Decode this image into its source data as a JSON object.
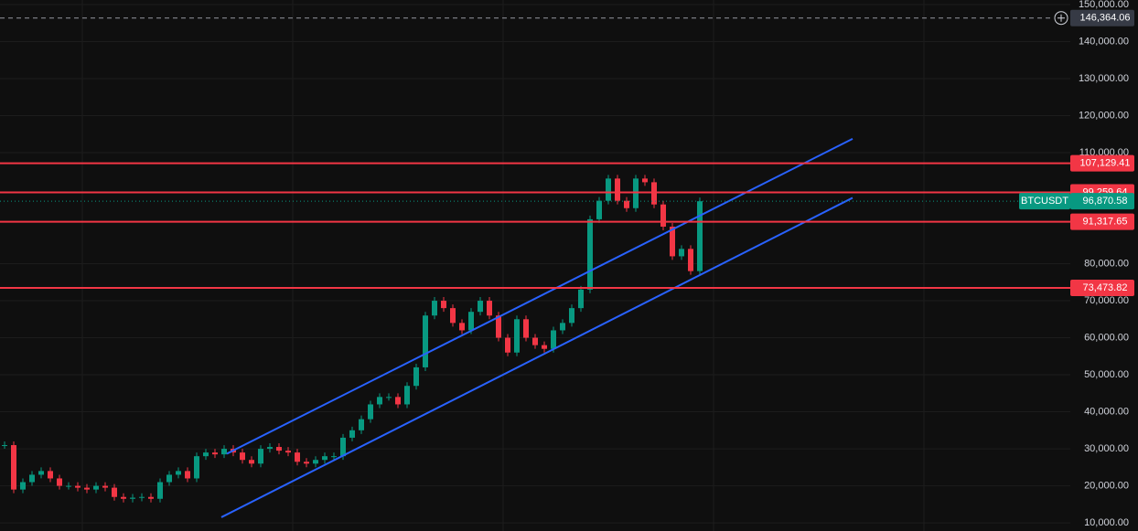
{
  "chart_data": {
    "type": "candles",
    "symbol": "BTCUSDT",
    "x": [
      0,
      1,
      2,
      3,
      4,
      5,
      6,
      7,
      8,
      9,
      10,
      11,
      12,
      13,
      14,
      15,
      16,
      17,
      18,
      19,
      20,
      21,
      22,
      23,
      24,
      25,
      26,
      27,
      28,
      29,
      30,
      31,
      32,
      33,
      34,
      35,
      36,
      37,
      38,
      39,
      40,
      41,
      42,
      43,
      44,
      45,
      46,
      47,
      48,
      49,
      50,
      51,
      52,
      53,
      54,
      55,
      56,
      57,
      58,
      59,
      60,
      61,
      62,
      63,
      64,
      65,
      66,
      67,
      68,
      69,
      70,
      71,
      72,
      73,
      74,
      75,
      76
    ],
    "values": [
      31000,
      19000,
      21000,
      23000,
      24000,
      22000,
      20000,
      20000,
      19500,
      19000,
      20000,
      19500,
      17000,
      16500,
      16800,
      17000,
      16500,
      21000,
      23000,
      24000,
      22000,
      28000,
      29000,
      28500,
      30000,
      29000,
      27000,
      26000,
      30000,
      30500,
      29500,
      29000,
      26500,
      26000,
      27000,
      28000,
      28000,
      33000,
      35000,
      38000,
      42000,
      44000,
      44000,
      42000,
      47000,
      52000,
      66000,
      70000,
      68000,
      64000,
      62000,
      67000,
      70000,
      66000,
      60000,
      56000,
      65000,
      60000,
      58000,
      57000,
      62000,
      64000,
      68000,
      73000,
      92000,
      97000,
      103000,
      97000,
      95000,
      103000,
      102000,
      96000,
      90000,
      82000,
      84000,
      78000,
      96870.58
    ],
    "up_color": "#089981",
    "down_color": "#f23645",
    "xlim": [
      0,
      116.5
    ],
    "ylim": [
      7800,
      151225
    ],
    "yticks": [
      {
        "value": 150000,
        "label": "150,000.00"
      },
      {
        "value": 140000,
        "label": "140,000.00"
      },
      {
        "value": 130000,
        "label": "130,000.00"
      },
      {
        "value": 120000,
        "label": "120,000.00"
      },
      {
        "value": 110000,
        "label": "110,000.00"
      },
      {
        "value": 80000,
        "label": "80,000.00"
      },
      {
        "value": 70000,
        "label": "70,000.00"
      },
      {
        "value": 60000,
        "label": "60,000.00"
      },
      {
        "value": 50000,
        "label": "50,000.00"
      },
      {
        "value": 40000,
        "label": "40,000.00"
      },
      {
        "value": 30000,
        "label": "30,000.00"
      },
      {
        "value": 20000,
        "label": "20,000.00"
      },
      {
        "value": 10000,
        "label": "10,000.00"
      }
    ],
    "grid": true,
    "levels": [
      {
        "value": 107129.41,
        "label": "107,129.41"
      },
      {
        "value": 99259.64,
        "label": "99,259.64"
      },
      {
        "value": 91317.65,
        "label": "91,317.65"
      },
      {
        "value": 73473.82,
        "label": "73,473.82"
      }
    ],
    "level_color": "#f23645",
    "current_price": {
      "value": 96870.58,
      "label": "96,870.58"
    },
    "crosshair": {
      "value": 146364.06,
      "label": "146,364.06"
    },
    "trendlines": [
      {
        "x": [
          24.3,
          92.7
        ],
        "values": [
          28677,
          113725
        ]
      },
      {
        "x": [
          23.7,
          92.7
        ],
        "values": [
          11520,
          97794
        ]
      }
    ],
    "trendline_color": "#2962ff"
  }
}
